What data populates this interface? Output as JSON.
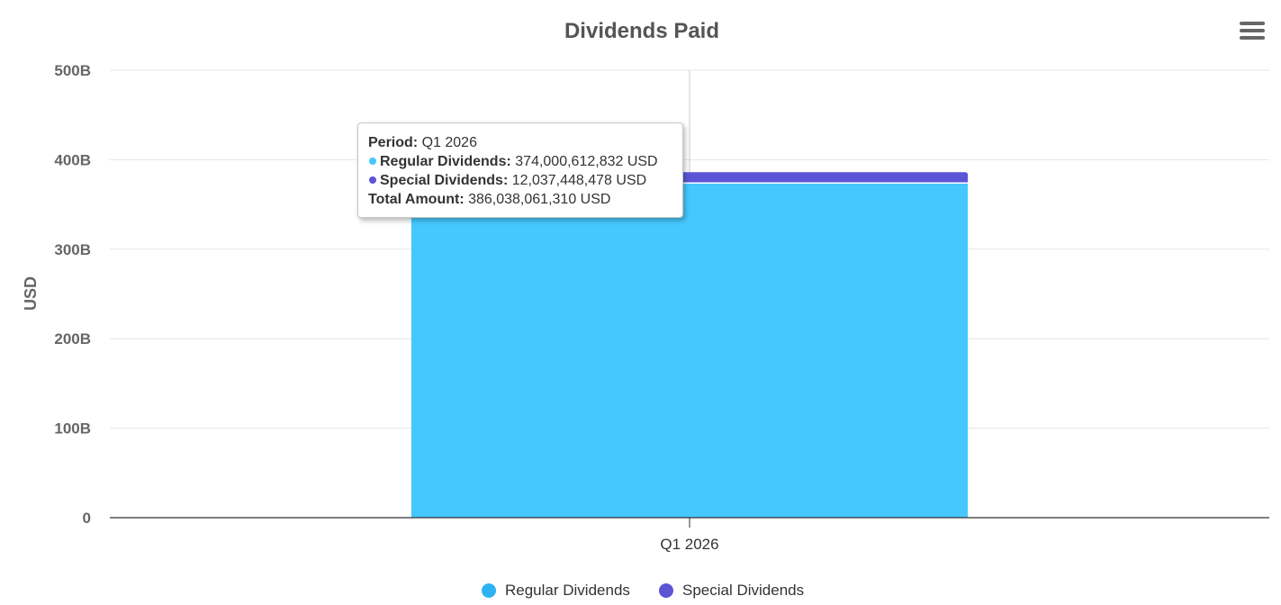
{
  "chart_data": {
    "type": "bar",
    "stacked": true,
    "title": "Dividends Paid",
    "categories": [
      "Q1 2026"
    ],
    "series": [
      {
        "name": "Regular Dividends",
        "values": [
          374000612832
        ],
        "color": "#45c8fd"
      },
      {
        "name": "Special Dividends",
        "values": [
          12037448478
        ],
        "color": "#5b55d6"
      }
    ],
    "ylabel": "USD",
    "xlabel": "",
    "ylim": [
      0,
      500000000000
    ],
    "yticks": [
      {
        "value": 0,
        "label": "0"
      },
      {
        "value": 100000000000,
        "label": "100B"
      },
      {
        "value": 200000000000,
        "label": "200B"
      },
      {
        "value": 300000000000,
        "label": "300B"
      },
      {
        "value": 400000000000,
        "label": "400B"
      },
      {
        "value": 500000000000,
        "label": "500B"
      }
    ],
    "grid": true,
    "legend_position": "bottom-center"
  },
  "tooltip": {
    "period_label": "Period:",
    "period_value": "Q1 2026",
    "regular_label": "Regular Dividends:",
    "regular_value": "374,000,612,832 USD",
    "special_label": "Special Dividends:",
    "special_value": "12,037,448,478 USD",
    "total_label": "Total Amount:",
    "total_value": "386,038,061,310 USD"
  },
  "menu": {
    "icon": "hamburger-menu-icon"
  },
  "colors": {
    "title": "#555555",
    "axis_text": "#666666",
    "grid": "#e6e6e6",
    "axis_line": "#333333"
  }
}
